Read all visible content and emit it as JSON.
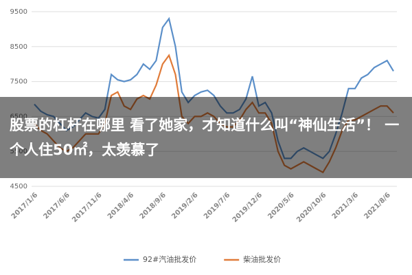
{
  "chart_data": {
    "type": "line",
    "title": "股票的杠杆在哪里 看了她家，才知道什么叫“神仙生活”！ 一个人住50㎡，太羡慕了",
    "categories": [
      "2017/1/6",
      null,
      null,
      null,
      null,
      "2017/6/6",
      null,
      null,
      null,
      null,
      "2017/11/6",
      null,
      null,
      null,
      null,
      "2018/4/6",
      null,
      null,
      null,
      null,
      "2018/9/6",
      null,
      null,
      null,
      null,
      "2019/2/6",
      null,
      null,
      null,
      null,
      "2019/7/6",
      null,
      null,
      null,
      null,
      "2019/12/6",
      null,
      null,
      null,
      null,
      "2020/5/6",
      null,
      null,
      null,
      null,
      "2020/10/6",
      null,
      null,
      null,
      null,
      "2021/3/6",
      null,
      null,
      null,
      null,
      "2021/8/6",
      null
    ],
    "series": [
      {
        "name": "92#汽油批发价",
        "color": "#5b8fc9",
        "values": [
          6850,
          6650,
          6550,
          6500,
          6300,
          6100,
          6200,
          6400,
          6600,
          6500,
          6450,
          6700,
          7700,
          7550,
          7500,
          7550,
          7700,
          8000,
          7850,
          8100,
          9050,
          9300,
          8500,
          7200,
          6900,
          7100,
          7200,
          7250,
          7100,
          6800,
          6600,
          6600,
          6700,
          7000,
          7650,
          6800,
          6900,
          6600,
          5800,
          5300,
          5300,
          5500,
          5600,
          5500,
          5400,
          5300,
          5500,
          6000,
          6600,
          7300,
          7300,
          7600,
          7700,
          7900,
          8000,
          8100,
          7800
        ]
      },
      {
        "name": "柴油批发价",
        "color": "#e07b39",
        "values": [
          6300,
          6100,
          6000,
          5800,
          5600,
          5500,
          5600,
          5800,
          6000,
          6000,
          6000,
          6300,
          7100,
          7200,
          6800,
          6700,
          7000,
          7100,
          7000,
          7400,
          8000,
          8250,
          7700,
          6500,
          6300,
          6500,
          6500,
          6600,
          6500,
          6300,
          6200,
          6200,
          6400,
          6700,
          6900,
          6600,
          6600,
          6300,
          5500,
          5100,
          5000,
          5100,
          5200,
          5100,
          5000,
          4900,
          5200,
          5600,
          6100,
          6400,
          6400,
          6500,
          6600,
          6700,
          6800,
          6800,
          6600
        ]
      }
    ],
    "ylim": [
      4500,
      9500
    ],
    "yticks": [
      4500,
      5500,
      6500,
      7500,
      8500,
      9500
    ],
    "grid": true
  }
}
